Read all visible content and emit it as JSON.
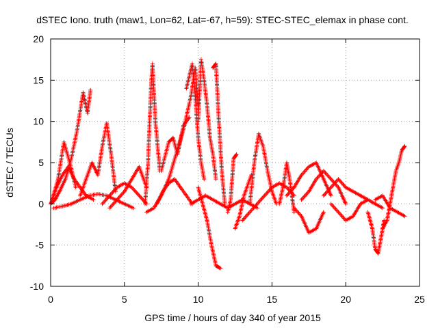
{
  "chart_data": {
    "type": "scatter",
    "title": "dSTEC Iono. truth (maw1, Lon=62, Lat=-67, h=59): STEC-STEC_elemax in phase cont.",
    "xlabel": "GPS time / hours of day 340 of year 2015",
    "ylabel": "dSTEC  / TECUs",
    "xlim": [
      0,
      25
    ],
    "ylim": [
      -10,
      20
    ],
    "xticks": [
      0,
      5,
      10,
      15,
      20,
      25
    ],
    "yticks": [
      -10,
      -5,
      0,
      5,
      10,
      15,
      20
    ],
    "grid": true,
    "marker": "+",
    "series": [
      {
        "color": "#ff0000",
        "arcs": [
          {
            "x": [
              0.0,
              0.3,
              0.6,
              1.0,
              1.4,
              1.8,
              2.2,
              2.5,
              2.7
            ],
            "y": [
              0.0,
              0.5,
              1.5,
              3.0,
              5.5,
              9.0,
              13.5,
              11.0,
              13.8
            ]
          },
          {
            "x": [
              0.1,
              0.5,
              0.9,
              1.3,
              1.7
            ],
            "y": [
              0.5,
              3.0,
              7.5,
              5.0,
              2.0
            ]
          },
          {
            "x": [
              0.0,
              0.4,
              0.8,
              1.2,
              1.6,
              2.0,
              2.4,
              2.9
            ],
            "y": [
              0.0,
              2.0,
              3.5,
              4.5,
              3.0,
              2.0,
              1.0,
              0.5
            ]
          },
          {
            "x": [
              0.2,
              0.8,
              1.4,
              2.0,
              2.6,
              3.2,
              3.8,
              4.4,
              5.0,
              5.6
            ],
            "y": [
              -0.5,
              -0.3,
              0.0,
              0.5,
              1.0,
              1.2,
              1.0,
              0.5,
              0.0,
              -0.5
            ]
          },
          {
            "x": [
              2.0,
              2.4,
              2.8,
              3.2,
              3.5,
              3.8,
              4.1,
              4.4
            ],
            "y": [
              1.0,
              3.0,
              5.0,
              3.5,
              7.0,
              9.8,
              6.0,
              1.5
            ]
          },
          {
            "x": [
              3.5,
              4.0,
              4.5,
              5.0,
              5.5,
              6.0,
              6.5
            ],
            "y": [
              0.0,
              1.0,
              2.0,
              2.5,
              2.0,
              1.0,
              0.0
            ]
          },
          {
            "x": [
              4.0,
              4.5,
              5.0,
              5.5,
              6.0,
              6.5
            ],
            "y": [
              -0.5,
              0.5,
              1.5,
              3.0,
              4.5,
              2.0
            ]
          },
          {
            "x": [
              6.4,
              6.6,
              6.8,
              6.9,
              7.1,
              7.4
            ],
            "y": [
              0.0,
              5.0,
              14.0,
              17.0,
              10.0,
              4.0
            ]
          },
          {
            "x": [
              6.5,
              7.0,
              7.5,
              8.0,
              8.5,
              9.0,
              9.5,
              9.8,
              10.0
            ],
            "y": [
              -1.0,
              -0.5,
              1.0,
              3.0,
              6.0,
              9.0,
              13.0,
              16.5,
              12.0
            ]
          },
          {
            "x": [
              7.5,
              8.0,
              8.3,
              8.6,
              9.0,
              9.4
            ],
            "y": [
              4.0,
              7.5,
              8.0,
              6.0,
              9.5,
              10.5
            ]
          },
          {
            "x": [
              7.2,
              7.6,
              8.0,
              8.4,
              8.8,
              9.2,
              9.6
            ],
            "y": [
              0.0,
              1.5,
              2.5,
              3.0,
              2.0,
              1.0,
              0.0
            ]
          },
          {
            "x": [
              9.2,
              9.4,
              9.6,
              9.8,
              10.0,
              10.2,
              10.4
            ],
            "y": [
              14.0,
              15.5,
              17.0,
              13.0,
              8.0,
              5.0,
              3.0
            ]
          },
          {
            "x": [
              10.0,
              10.2,
              10.4,
              10.6,
              10.8,
              11.0,
              11.2
            ],
            "y": [
              10.0,
              17.5,
              15.0,
              12.0,
              8.0,
              6.0,
              3.0
            ]
          },
          {
            "x": [
              10.0,
              10.3,
              10.6,
              10.9,
              11.2,
              11.5
            ],
            "y": [
              2.0,
              0.0,
              -2.0,
              -5.0,
              -7.5,
              -7.8
            ]
          },
          {
            "x": [
              11.0,
              11.2,
              11.4,
              11.6,
              11.8
            ],
            "y": [
              16.5,
              17.0,
              10.0,
              4.0,
              0.0
            ]
          },
          {
            "x": [
              9.5,
              10.0,
              10.5,
              11.0,
              11.5,
              12.0,
              12.5,
              13.0,
              13.5,
              14.0
            ],
            "y": [
              0.0,
              0.5,
              1.0,
              0.5,
              0.0,
              -0.5,
              0.0,
              0.5,
              0.0,
              -0.5
            ]
          },
          {
            "x": [
              12.0,
              12.2,
              12.4,
              12.6
            ],
            "y": [
              -1.0,
              0.5,
              5.5,
              6.0
            ]
          },
          {
            "x": [
              12.5,
              12.8,
              13.1,
              13.4,
              13.6
            ],
            "y": [
              -3.0,
              -1.5,
              1.0,
              2.5,
              3.5
            ]
          },
          {
            "x": [
              13.5,
              13.8,
              14.1,
              14.4,
              14.7,
              15.0,
              15.3
            ],
            "y": [
              0.0,
              5.0,
              8.5,
              7.0,
              4.0,
              1.5,
              0.0
            ]
          },
          {
            "x": [
              13.0,
              13.5,
              14.0,
              14.5,
              15.0,
              15.5,
              16.0,
              16.5
            ],
            "y": [
              -2.0,
              -1.0,
              0.0,
              1.0,
              2.0,
              2.5,
              2.0,
              1.0
            ]
          },
          {
            "x": [
              15.5,
              15.8,
              16.0,
              16.2,
              16.5
            ],
            "y": [
              0.0,
              2.5,
              5.0,
              3.0,
              -1.0
            ]
          },
          {
            "x": [
              16.0,
              16.5,
              17.0,
              17.5,
              18.0,
              18.5,
              19.0
            ],
            "y": [
              1.0,
              2.0,
              3.5,
              4.5,
              5.0,
              3.0,
              1.0
            ]
          },
          {
            "x": [
              17.0,
              17.5,
              18.0,
              18.5,
              19.0,
              19.5,
              20.0
            ],
            "y": [
              0.5,
              1.5,
              3.0,
              4.0,
              3.0,
              2.0,
              0.0
            ]
          },
          {
            "x": [
              16.5,
              17.0,
              17.5,
              18.0,
              18.5
            ],
            "y": [
              -0.5,
              -1.5,
              -3.5,
              -3.0,
              -1.0
            ]
          },
          {
            "x": [
              19.0,
              19.5,
              20.0,
              20.5,
              21.0,
              21.5,
              22.0,
              22.5
            ],
            "y": [
              0.0,
              -1.0,
              -2.0,
              -1.5,
              0.0,
              0.5,
              0.0,
              -0.5
            ]
          },
          {
            "x": [
              18.5,
              19.0,
              19.5,
              20.0,
              20.5,
              21.0,
              21.5
            ],
            "y": [
              1.0,
              2.0,
              3.0,
              2.0,
              1.5,
              1.0,
              0.5
            ]
          },
          {
            "x": [
              21.5,
              21.8,
              22.0,
              22.2,
              22.4,
              22.6
            ],
            "y": [
              -1.0,
              -3.0,
              -5.5,
              -6.0,
              -4.0,
              -2.0
            ]
          },
          {
            "x": [
              22.5,
              22.8,
              23.0,
              23.2,
              23.4,
              23.6,
              23.8,
              24.0
            ],
            "y": [
              -3.0,
              -2.0,
              0.0,
              2.0,
              4.0,
              5.0,
              6.5,
              7.0
            ]
          },
          {
            "x": [
              22.0,
              22.5,
              23.0,
              23.5,
              24.0
            ],
            "y": [
              0.5,
              1.0,
              -0.5,
              -1.0,
              -1.5
            ]
          }
        ]
      }
    ]
  }
}
